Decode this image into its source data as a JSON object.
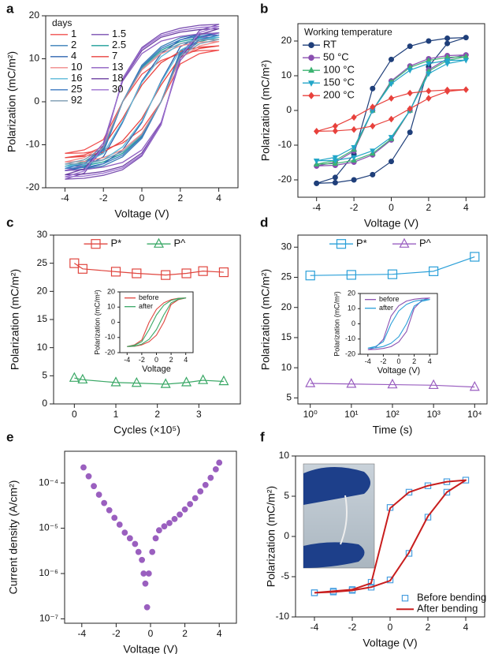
{
  "chart_data": [
    {
      "type": "line",
      "label": "a",
      "xlabel": "Voltage (V)",
      "ylabel": "Polarization (mC/m²)",
      "x": [
        -4,
        -3,
        -2,
        -1,
        0,
        1,
        2,
        3,
        4,
        3,
        2,
        1,
        0,
        -1,
        -2,
        -3,
        -4
      ],
      "xlim": [
        -5,
        5
      ],
      "xticks": [
        -4,
        -2,
        0,
        2,
        4
      ],
      "ylim": [
        -20,
        20
      ],
      "yticks": [
        -20,
        -10,
        0,
        10,
        20
      ],
      "legend": "upper left",
      "legend_title": "days",
      "legend_columns": 2,
      "series": [
        {
          "name": "1",
          "color": "#f0504f",
          "values": [
            -12,
            -11.9,
            -11.2,
            -9.6,
            -6.4,
            0,
            8.8,
            11.2,
            12,
            11.9,
            11.2,
            9.6,
            6.4,
            0,
            -8.8,
            -11.2,
            -12
          ]
        },
        {
          "name": "1.5",
          "color": "#7a4fb0",
          "values": [
            -18,
            -17.8,
            -17.1,
            -15.8,
            -12.6,
            -5.4,
            10.8,
            16.6,
            18,
            17.8,
            17.1,
            15.8,
            12.6,
            5.4,
            -10.8,
            -16.6,
            -18
          ]
        },
        {
          "name": "2",
          "color": "#3a7fb8",
          "values": [
            -16,
            -15.8,
            -14.9,
            -12.8,
            -8.5,
            0,
            11.7,
            14.9,
            16,
            15.8,
            14.9,
            12.8,
            8.5,
            0,
            -11.7,
            -14.9,
            -16
          ]
        },
        {
          "name": "2.5",
          "color": "#1e9e9a",
          "values": [
            -15,
            -14.9,
            -14,
            -12,
            -8,
            0,
            11,
            14,
            15,
            14.9,
            14,
            12,
            8,
            0,
            -11,
            -14,
            -15
          ]
        },
        {
          "name": "4",
          "color": "#2f66b0",
          "values": [
            -16,
            -15.7,
            -14.4,
            -11.2,
            -4.8,
            4.8,
            12.8,
            15.2,
            16,
            15.7,
            14.4,
            11.2,
            4.8,
            -4.8,
            -12.8,
            -15.2,
            -16
          ]
        },
        {
          "name": "7",
          "color": "#e8423f",
          "values": [
            -13,
            -12.7,
            -11.7,
            -9.1,
            -3.9,
            3.9,
            10.4,
            12.4,
            13,
            12.7,
            11.7,
            9.1,
            3.9,
            -3.9,
            -10.4,
            -12.4,
            -13
          ]
        },
        {
          "name": "10",
          "color": "#f08a8a",
          "values": [
            -14,
            -13.9,
            -13,
            -11.2,
            -7.4,
            0,
            10.2,
            13,
            14,
            13.9,
            13,
            11.2,
            7.4,
            0,
            -10.2,
            -13,
            -14
          ]
        },
        {
          "name": "13",
          "color": "#8e5ec0",
          "values": [
            -16,
            -15.8,
            -15.2,
            -14.1,
            -11.2,
            -4.8,
            9.6,
            14.7,
            16,
            15.8,
            15.2,
            14.1,
            11.2,
            4.8,
            -9.6,
            -14.7,
            -16
          ]
        },
        {
          "name": "16",
          "color": "#5bb8d8",
          "values": [
            -15,
            -14.7,
            -13.5,
            -10.5,
            -4.5,
            4.5,
            12,
            14.3,
            15,
            14.7,
            13.5,
            10.5,
            4.5,
            -4.5,
            -12,
            -14.3,
            -15
          ]
        },
        {
          "name": "18",
          "color": "#6b3fa0",
          "values": [
            -17,
            -16.8,
            -16.2,
            -15,
            -11.9,
            -5.1,
            10.2,
            15.6,
            17,
            16.8,
            16.2,
            15,
            11.9,
            5.1,
            -10.2,
            -15.6,
            -17
          ]
        },
        {
          "name": "25",
          "color": "#3b78c0",
          "values": [
            -15.5,
            -15.3,
            -14.4,
            -12.4,
            -8.2,
            0,
            11.3,
            14.4,
            15.5,
            15.3,
            14.4,
            12.4,
            8.2,
            0,
            -11.3,
            -14.4,
            -15.5
          ]
        },
        {
          "name": "30",
          "color": "#9b6fd0",
          "values": [
            -17.5,
            -17.3,
            -16.6,
            -15.4,
            -12.3,
            -5.3,
            10.5,
            16.1,
            17.5,
            17.3,
            16.6,
            15.4,
            12.3,
            5.3,
            -10.5,
            -16.1,
            -17.5
          ]
        },
        {
          "name": "92",
          "color": "#7a9ab0",
          "values": [
            -14.5,
            -14.4,
            -13.5,
            -11.6,
            -7.7,
            0,
            10.6,
            13.5,
            14.5,
            14.4,
            13.5,
            11.6,
            7.7,
            0,
            -10.6,
            -13.5,
            -14.5
          ]
        }
      ]
    },
    {
      "type": "line",
      "label": "b",
      "xlabel": "Voltage (V)",
      "ylabel": "Polarization (mC/m²)",
      "x": [
        -4,
        -3,
        -2,
        -1,
        0,
        1,
        2,
        3,
        4,
        3,
        2,
        1,
        0,
        -1,
        -2,
        -3,
        -4
      ],
      "xlim": [
        -5,
        5
      ],
      "xticks": [
        -4,
        -2,
        0,
        2,
        4
      ],
      "ylim": [
        -25,
        25
      ],
      "yticks": [
        -20,
        -10,
        0,
        10,
        20
      ],
      "legend": "upper left",
      "legend_title": "Working temperature",
      "legend_columns": 1,
      "series": [
        {
          "name": "RT",
          "color": "#1f3f7a",
          "marker": "circle",
          "values": [
            -21,
            -20.8,
            -20,
            -18.5,
            -14.7,
            -6.3,
            12.6,
            19.3,
            21,
            20.8,
            20,
            18.5,
            14.7,
            6.3,
            -12.6,
            -19.3,
            -21
          ]
        },
        {
          "name": "50 °C",
          "color": "#8a4fb0",
          "marker": "circle",
          "values": [
            -16,
            -15.8,
            -14.9,
            -12.8,
            -8.5,
            0,
            11.7,
            14.9,
            16,
            15.8,
            14.9,
            12.8,
            8.5,
            0,
            -11.7,
            -14.9,
            -16
          ]
        },
        {
          "name": "100 °C",
          "color": "#3cb371",
          "marker": "triangle",
          "values": [
            -15.5,
            -15.3,
            -14.4,
            -12.4,
            -8.2,
            0,
            11.3,
            14.4,
            15.5,
            15.3,
            14.4,
            12.4,
            8.2,
            0,
            -11.3,
            -14.4,
            -15.5
          ]
        },
        {
          "name": "150 °C",
          "color": "#22a6c8",
          "marker": "triangle-down",
          "values": [
            -14.5,
            -14.4,
            -13.5,
            -11.6,
            -7.7,
            0,
            10.6,
            13.5,
            14.5,
            14.4,
            13.5,
            11.6,
            7.7,
            0,
            -10.6,
            -13.5,
            -14.5
          ]
        },
        {
          "name": "200 °C",
          "color": "#e8413c",
          "marker": "diamond",
          "values": [
            -6,
            -5.9,
            -5.5,
            -4.5,
            -2.5,
            0.5,
            3.5,
            5.5,
            6,
            5.9,
            5.6,
            5,
            3.5,
            1,
            -2,
            -4.5,
            -6
          ]
        }
      ]
    },
    {
      "type": "line",
      "label": "c",
      "xlabel": "Cycles (×10⁵)",
      "ylabel": "Polarization (mC/m²)",
      "x": [
        0,
        0.2,
        1,
        1.5,
        2.2,
        2.7,
        3.1,
        3.6
      ],
      "xlim": [
        -0.5,
        4
      ],
      "xticks": [
        0,
        1,
        2,
        3
      ],
      "ylim": [
        0,
        30
      ],
      "yticks": [
        0,
        5,
        10,
        15,
        20,
        25,
        30
      ],
      "legend": "upper center",
      "legend_columns": 2,
      "series": [
        {
          "name": "P*",
          "color": "#e0463f",
          "marker": "square-open",
          "values": [
            25,
            24,
            23.5,
            23.2,
            22.9,
            23.2,
            23.6,
            23.4
          ]
        },
        {
          "name": "P^",
          "color": "#3aa866",
          "marker": "triangle-open",
          "values": [
            4.6,
            4.3,
            3.8,
            3.7,
            3.5,
            3.8,
            4.2,
            4.0
          ]
        }
      ]
    },
    {
      "type": "line",
      "xlabel": "Voltage",
      "ylabel": "Polarization (mC/m²)",
      "x": [
        -4,
        -3,
        -2,
        -1,
        0,
        1,
        2,
        3,
        4,
        3,
        2,
        1,
        0,
        -1,
        -2,
        -3,
        -4
      ],
      "xlim": [
        -5,
        5
      ],
      "xticks": [
        -4,
        -2,
        0,
        2,
        4
      ],
      "ylim": [
        -20,
        20
      ],
      "yticks": [
        -20,
        -10,
        0,
        10,
        20
      ],
      "legend": "upper left",
      "legend_columns": 1,
      "series": [
        {
          "name": "before",
          "color": "#e0463f",
          "values": [
            -16,
            -15.8,
            -14.9,
            -12.8,
            -8.5,
            0,
            11.7,
            14.9,
            16,
            15.8,
            14.9,
            12.8,
            8.5,
            0,
            -11.7,
            -14.9,
            -16
          ]
        },
        {
          "name": "after",
          "color": "#3aa866",
          "values": [
            -16,
            -15.7,
            -14.4,
            -11.2,
            -4.8,
            4.8,
            12.8,
            15.2,
            16,
            15.7,
            14.4,
            11.2,
            4.8,
            -4.8,
            -12.8,
            -15.2,
            -16
          ]
        }
      ]
    },
    {
      "type": "line",
      "label": "d",
      "xlabel": "Time (s)",
      "ylabel": "Polarization (mC/m²)",
      "xlog": true,
      "x": [
        1,
        10,
        100,
        1000,
        10000
      ],
      "xlim": [
        0.5,
        20000
      ],
      "xticks": [
        {
          "value": 1,
          "label": "10⁰"
        },
        {
          "value": 10,
          "label": "10¹"
        },
        {
          "value": 100,
          "label": "10²"
        },
        {
          "value": 1000,
          "label": "10³"
        },
        {
          "value": 10000,
          "label": "10⁴"
        }
      ],
      "ylim": [
        4,
        32
      ],
      "yticks": [
        5,
        10,
        15,
        20,
        25,
        30
      ],
      "legend": "upper center",
      "legend_columns": 2,
      "series": [
        {
          "name": "P*",
          "color": "#2a9fd8",
          "marker": "square-open",
          "values": [
            25.3,
            25.4,
            25.5,
            26,
            28.4
          ]
        },
        {
          "name": "P^",
          "color": "#9a5fc0",
          "marker": "triangle-open",
          "values": [
            7.4,
            7.3,
            7.2,
            7.1,
            6.8
          ]
        }
      ]
    },
    {
      "type": "line",
      "xlabel": "Voltage (V)",
      "ylabel": "Polarization (mC/m²)",
      "x": [
        -4,
        -3,
        -2,
        -1,
        0,
        1,
        2,
        3,
        4,
        3,
        2,
        1,
        0,
        -1,
        -2,
        -3,
        -4
      ],
      "xlim": [
        -5,
        5
      ],
      "xticks": [
        -4,
        -2,
        0,
        2,
        4
      ],
      "ylim": [
        -20,
        20
      ],
      "yticks": [
        -20,
        -10,
        0,
        10,
        20
      ],
      "legend": "upper left",
      "legend_columns": 1,
      "series": [
        {
          "name": "before",
          "color": "#8a4fb0",
          "values": [
            -17,
            -16.8,
            -16.2,
            -15,
            -11.9,
            -5.1,
            10.2,
            15.6,
            17,
            16.8,
            16.2,
            15,
            11.9,
            5.1,
            -10.2,
            -15.6,
            -17
          ]
        },
        {
          "name": "after",
          "color": "#2a9fd8",
          "values": [
            -16,
            -15.8,
            -14.9,
            -12.8,
            -8.5,
            0,
            11.7,
            14.9,
            16,
            15.8,
            14.9,
            12.8,
            8.5,
            0,
            -11.7,
            -14.9,
            -16
          ]
        }
      ]
    },
    {
      "type": "scatter",
      "label": "e",
      "xlabel": "Voltage (V)",
      "ylabel": "Current density (A/cm²)",
      "ylog": true,
      "x": [
        -3.9,
        -3.6,
        -3.3,
        -3,
        -2.7,
        -2.4,
        -2.1,
        -1.8,
        -1.5,
        -1.2,
        -0.9,
        -0.7,
        -0.5,
        -0.4,
        -0.3,
        -0.2,
        -0.1,
        0.1,
        0.3,
        0.5,
        0.8,
        1.1,
        1.4,
        1.7,
        2,
        2.3,
        2.6,
        2.9,
        3.2,
        3.5,
        3.8,
        4
      ],
      "xlim": [
        -5,
        5
      ],
      "xticks": [
        -4,
        -2,
        0,
        2,
        4
      ],
      "ylim": [
        8e-08,
        0.0005
      ],
      "yticks": [
        {
          "value": 1e-07,
          "label": "10⁻⁷"
        },
        {
          "value": 1e-06,
          "label": "10⁻⁶"
        },
        {
          "value": 1e-05,
          "label": "10⁻⁵"
        },
        {
          "value": 0.0001,
          "label": "10⁻⁴"
        }
      ],
      "series": [
        {
          "color": "#9a5fbf",
          "marker": "circle",
          "values": [
            0.00022,
            0.00014,
            8.5e-05,
            5.5e-05,
            3.6e-05,
            2.5e-05,
            1.7e-05,
            1.2e-05,
            8e-06,
            6e-06,
            4.5e-06,
            3e-06,
            2e-06,
            1e-06,
            6e-07,
            1.8e-07,
            1e-06,
            3e-06,
            6e-06,
            9e-06,
            1.1e-05,
            1.3e-05,
            1.6e-05,
            2e-05,
            2.6e-05,
            3.4e-05,
            4.6e-05,
            6.5e-05,
            9e-05,
            0.00013,
            0.0002,
            0.00028
          ]
        }
      ]
    },
    {
      "type": "line",
      "label": "f",
      "xlabel": "Voltage (V)",
      "ylabel": "Polarization (mC/m²)",
      "x": [
        -4,
        -3,
        -2,
        -1,
        0,
        1,
        2,
        3,
        4,
        3,
        2,
        1,
        0,
        -1,
        -2,
        -3,
        -4
      ],
      "xlim": [
        -5,
        5
      ],
      "xticks": [
        -4,
        -2,
        0,
        2,
        4
      ],
      "ylim": [
        -10,
        10
      ],
      "yticks": [
        -10,
        -5,
        0,
        5,
        10
      ],
      "legend": "lower right",
      "legend_columns": 1,
      "series": [
        {
          "name": "Before bending",
          "color": "#4a9fe0",
          "marker": "square-open",
          "line": false,
          "values": [
            -7,
            -6.9,
            -6.7,
            -6.3,
            -5.4,
            -2.1,
            2.4,
            5.5,
            7,
            6.8,
            6.3,
            5.5,
            3.6,
            -5.7,
            -6.6,
            -6.8,
            -7
          ]
        },
        {
          "name": "After bending",
          "color": "#c81e1e",
          "values": [
            -7,
            -6.9,
            -6.7,
            -6.3,
            -5.5,
            -2,
            2.5,
            5.5,
            7,
            6.8,
            6.3,
            5.5,
            3.5,
            -5.8,
            -6.6,
            -6.8,
            -7
          ]
        }
      ]
    }
  ]
}
